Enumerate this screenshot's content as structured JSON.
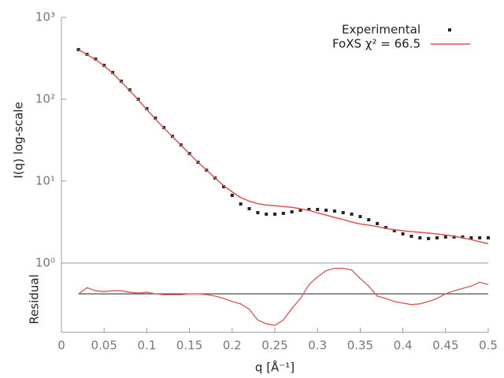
{
  "chart_data": {
    "type": "line",
    "ylabel": "I(q) log-scale",
    "xlabel": "q [Å⁻¹]",
    "residual_label": "Residual",
    "log_y": true,
    "legend": "top-right",
    "xlim": [
      0,
      0.5
    ],
    "xticks": [
      0,
      0.05,
      0.1,
      0.15,
      0.2,
      0.25,
      0.3,
      0.35,
      0.4,
      0.45,
      0.5
    ],
    "ylim": [
      1,
      1000
    ],
    "yticks": [
      {
        "value": 1,
        "label": "10⁰"
      },
      {
        "value": 10,
        "label": "10¹"
      },
      {
        "value": 100,
        "label": "10²"
      },
      {
        "value": 1000,
        "label": "10³"
      }
    ],
    "x": [
      0.02,
      0.03,
      0.04,
      0.05,
      0.06,
      0.07,
      0.08,
      0.09,
      0.1,
      0.11,
      0.12,
      0.13,
      0.14,
      0.15,
      0.16,
      0.17,
      0.18,
      0.19,
      0.2,
      0.21,
      0.22,
      0.23,
      0.24,
      0.25,
      0.26,
      0.27,
      0.28,
      0.29,
      0.3,
      0.31,
      0.32,
      0.33,
      0.34,
      0.35,
      0.36,
      0.37,
      0.38,
      0.39,
      0.4,
      0.41,
      0.42,
      0.43,
      0.44,
      0.45,
      0.46,
      0.47,
      0.48,
      0.49,
      0.5
    ],
    "series": [
      {
        "name": "Experimental",
        "color": "#222222",
        "style": "points",
        "values": [
          403,
          353,
          309,
          259,
          212,
          166,
          130,
          100,
          76.7,
          58.8,
          45.1,
          35.3,
          27.7,
          21.7,
          17.0,
          13.6,
          10.9,
          8.57,
          6.71,
          5.26,
          4.61,
          4.12,
          3.95,
          3.95,
          4.04,
          4.22,
          4.41,
          4.51,
          4.51,
          4.41,
          4.31,
          4.12,
          3.95,
          3.69,
          3.38,
          3.03,
          2.71,
          2.48,
          2.27,
          2.12,
          2.03,
          1.99,
          2.03,
          2.08,
          2.08,
          2.08,
          2.03,
          2.03,
          2.03
        ]
      },
      {
        "name": "FoXS χ² = 66.5",
        "color": "#d95550",
        "style": "line",
        "values": [
          403,
          350,
          305,
          255,
          208,
          163,
          128,
          98,
          75,
          57.5,
          44.5,
          35,
          27.5,
          21.5,
          17.0,
          13.6,
          10.9,
          8.8,
          7.4,
          6.3,
          5.7,
          5.3,
          5.1,
          5.0,
          4.9,
          4.8,
          4.6,
          4.4,
          4.1,
          3.85,
          3.6,
          3.4,
          3.16,
          3.0,
          2.9,
          2.78,
          2.65,
          2.55,
          2.48,
          2.42,
          2.37,
          2.32,
          2.27,
          2.2,
          2.12,
          2.03,
          1.93,
          1.82,
          1.72
        ]
      }
    ],
    "residual_ylim": [
      -5,
      4
    ],
    "residual_color": "#d95550",
    "residuals": [
      0,
      0.8,
      0.4,
      0.3,
      0.4,
      0.4,
      0.2,
      0.1,
      0.2,
      0,
      -0.1,
      -0.1,
      -0.1,
      0,
      0,
      -0.1,
      -0.3,
      -0.6,
      -1.0,
      -1.3,
      -2.0,
      -3.4,
      -3.9,
      -4.1,
      -3.4,
      -1.9,
      -0.6,
      1.2,
      2.2,
      3.0,
      3.3,
      3.3,
      3.1,
      2.0,
      1.0,
      -0.3,
      -0.6,
      -1.0,
      -1.2,
      -1.4,
      -1.3,
      -1.0,
      -0.6,
      0,
      0.4,
      0.7,
      1.0,
      1.5,
      1.2
    ]
  }
}
